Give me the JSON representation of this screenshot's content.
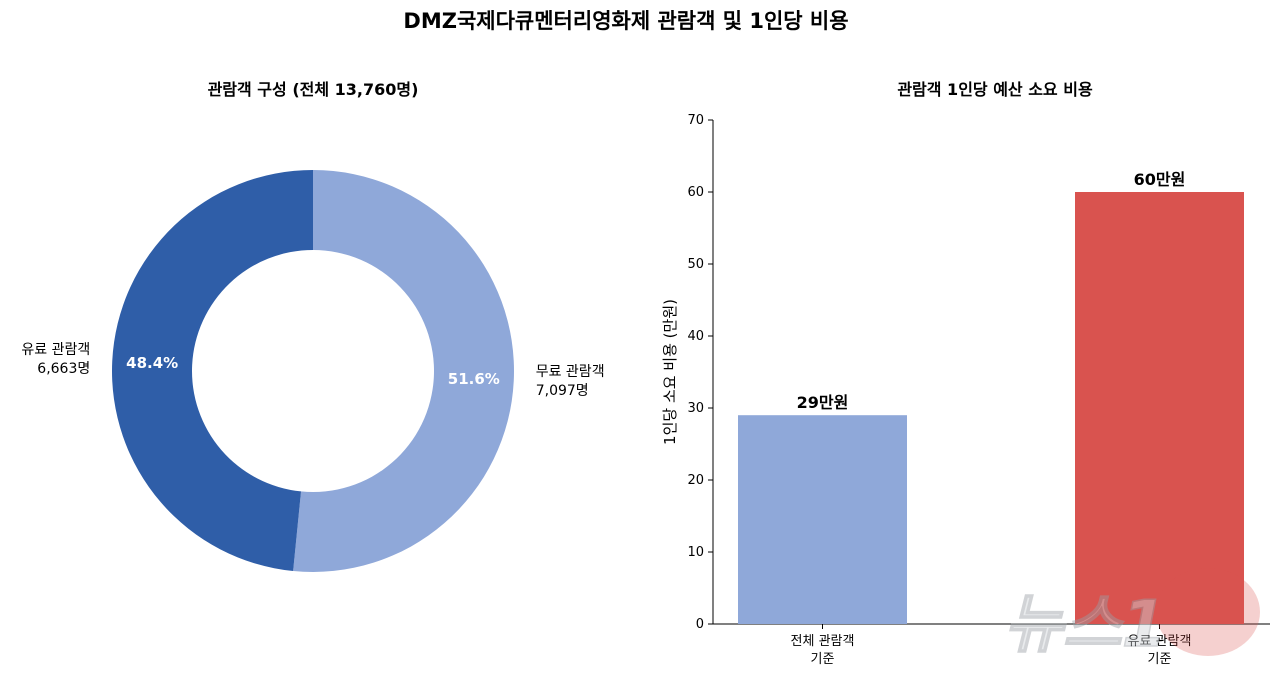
{
  "title": "DMZ국제다큐멘터리영화제 관람객 및 1인당 비용",
  "chart_data": [
    {
      "type": "pie",
      "title": "관람객 구성 (전체 13,760명)",
      "donut": true,
      "start_angle_deg": 90,
      "direction": "clockwise",
      "slices": [
        {
          "label": "무료 관람객",
          "count_text": "7,097명",
          "value": 7097,
          "percent": "51.6%",
          "color": "#8fa8d9"
        },
        {
          "label": "유료 관람객",
          "count_text": "6,663명",
          "value": 6663,
          "percent": "48.4%",
          "color": "#2f5ea8"
        }
      ]
    },
    {
      "type": "bar",
      "title": "관람객 1인당 예산 소요 비용",
      "ylabel": "1인당 소요 비용 (만원)",
      "ylim": [
        0,
        70
      ],
      "yticks": [
        "0",
        "10",
        "20",
        "30",
        "40",
        "50",
        "60",
        "70"
      ],
      "categories": [
        [
          "전체 관람객",
          "기준"
        ],
        [
          "유료 관람객",
          "기준"
        ]
      ],
      "values": [
        29,
        60
      ],
      "value_labels": [
        "29만원",
        "60만원"
      ],
      "colors": [
        "#8fa8d9",
        "#d9534f"
      ],
      "grid": false
    }
  ],
  "watermark": {
    "text": "뉴스1"
  }
}
